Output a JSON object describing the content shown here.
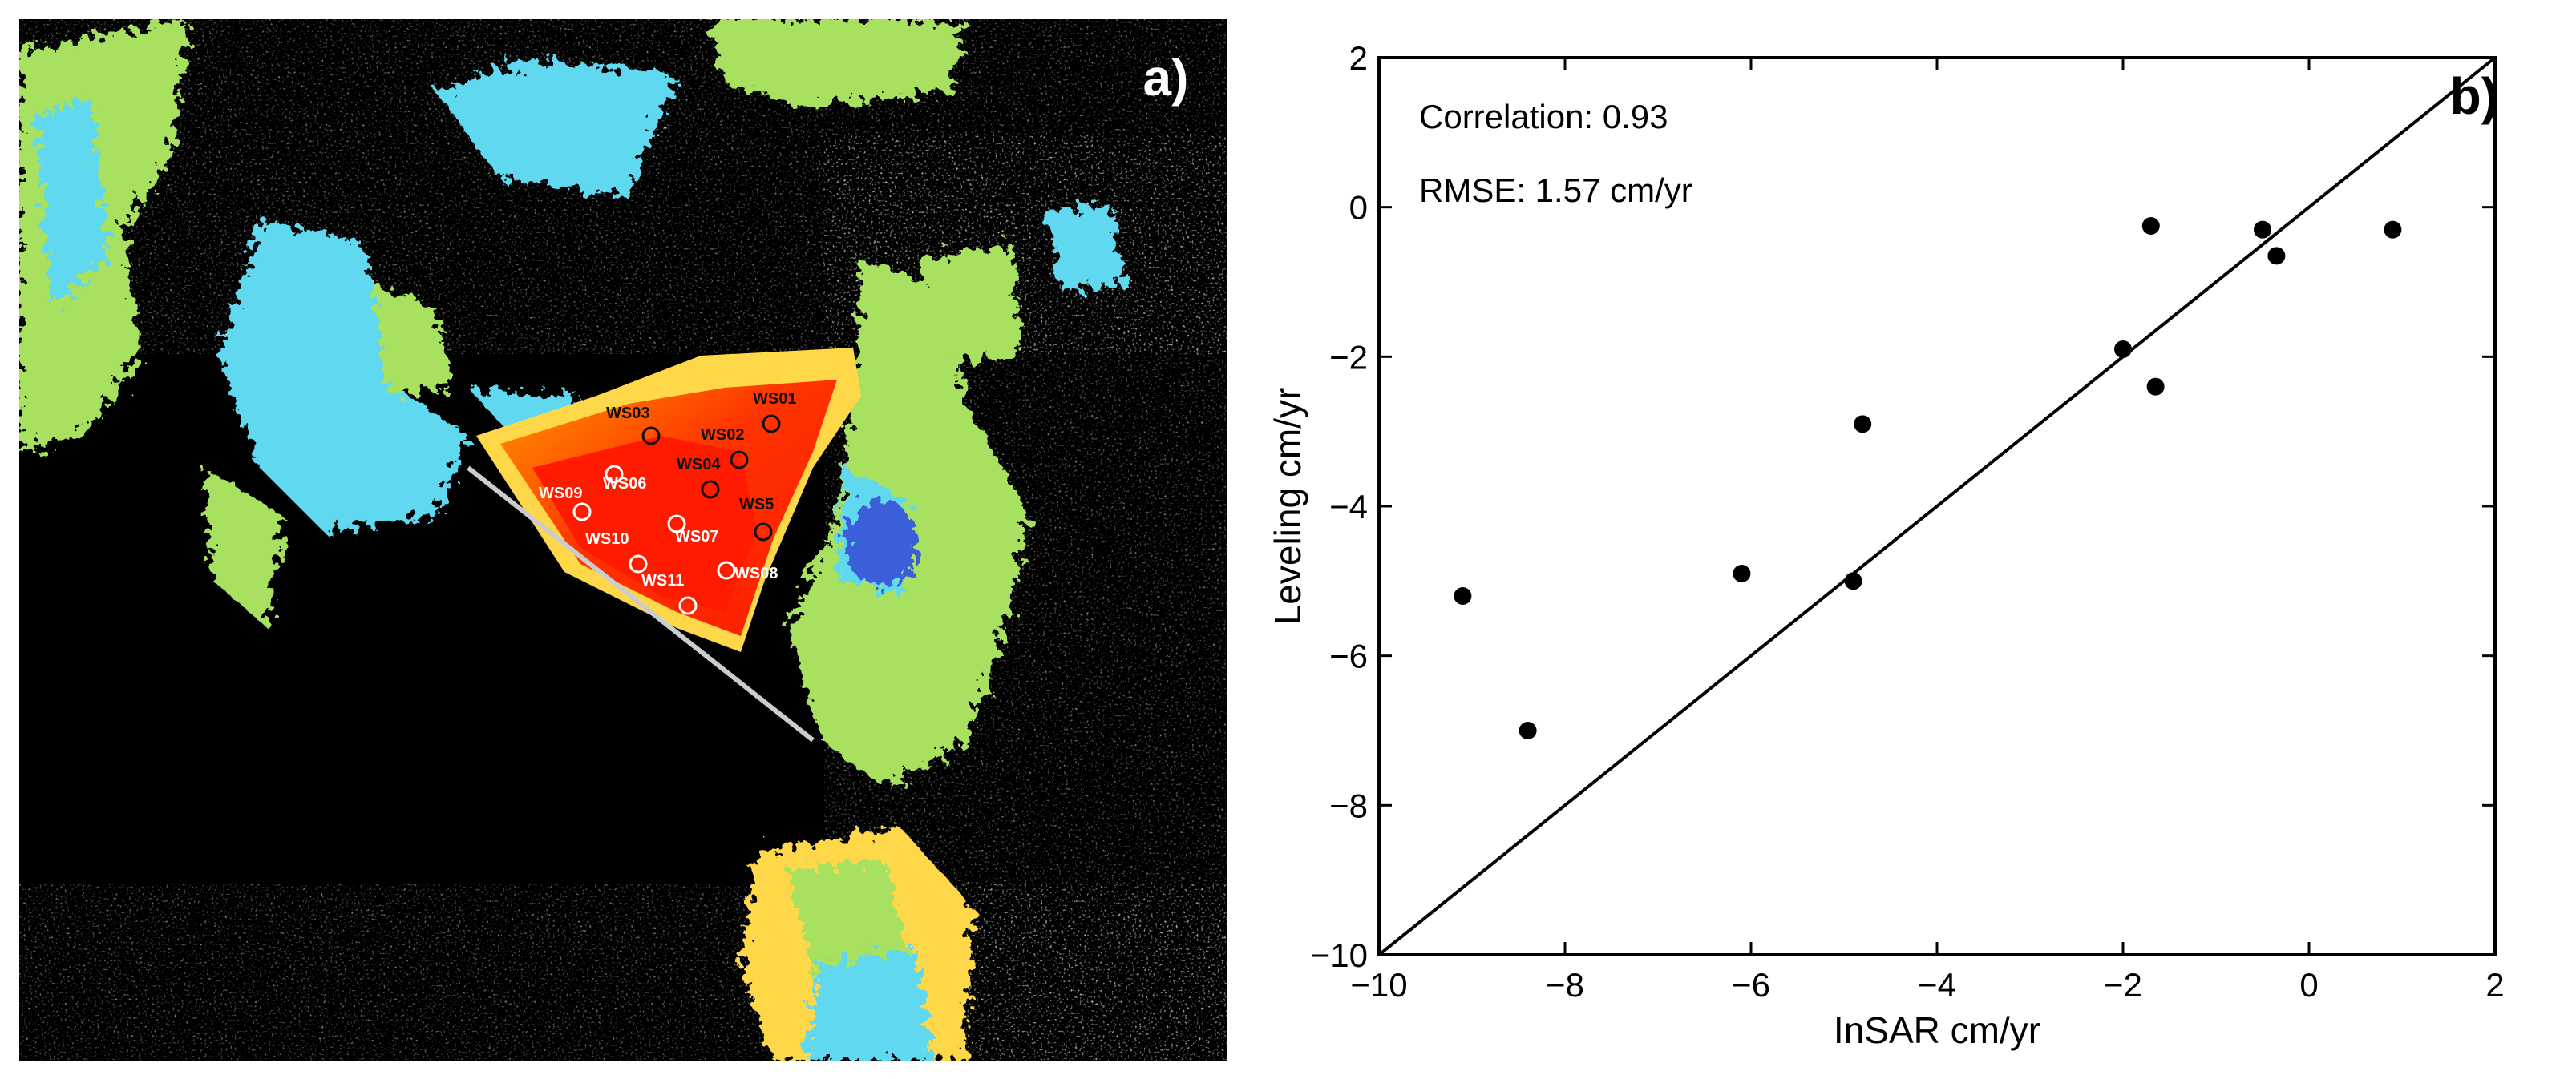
{
  "panel_a": {
    "label": "a)",
    "stations": [
      {
        "id": "WS01",
        "color": "#111111"
      },
      {
        "id": "WS02",
        "color": "#111111"
      },
      {
        "id": "WS03",
        "color": "#111111"
      },
      {
        "id": "WS04",
        "color": "#111111"
      },
      {
        "id": "WS5",
        "color": "#111111"
      },
      {
        "id": "WS06",
        "color": "#ffffff"
      },
      {
        "id": "WS07",
        "color": "#ffffff"
      },
      {
        "id": "WS08",
        "color": "#ffffff"
      },
      {
        "id": "WS09",
        "color": "#ffffff"
      },
      {
        "id": "WS10",
        "color": "#ffffff"
      },
      {
        "id": "WS11",
        "color": "#ffffff"
      }
    ],
    "colors": {
      "background": "#000000",
      "subsidence_max": "#ff1a00",
      "subsidence_mid": "#ff8c00",
      "stable": "#a8e060",
      "uplift_low": "#5fd8f0",
      "uplift_high": "#3a5fd8"
    }
  },
  "chart_data": {
    "type": "scatter",
    "panel_label": "b)",
    "xlabel": "InSAR cm/yr",
    "ylabel": "Leveling cm/yr",
    "xlim": [
      -10,
      2
    ],
    "ylim": [
      -10,
      2
    ],
    "xticks": [
      -10,
      -8,
      -6,
      -4,
      -2,
      0,
      2
    ],
    "yticks": [
      -10,
      -8,
      -6,
      -4,
      -2,
      0,
      2
    ],
    "grid": false,
    "reference_line": {
      "type": "1:1",
      "from": [
        -10,
        -10
      ],
      "to": [
        2,
        2
      ]
    },
    "annotations": [
      "Correlation: 0.93",
      "RMSE: 1.57 cm/yr"
    ],
    "points": [
      {
        "x": -9.1,
        "y": -5.2
      },
      {
        "x": -8.4,
        "y": -7.0
      },
      {
        "x": -6.1,
        "y": -4.9
      },
      {
        "x": -4.9,
        "y": -5.0
      },
      {
        "x": -4.8,
        "y": -2.9
      },
      {
        "x": -2.0,
        "y": -1.9
      },
      {
        "x": -1.7,
        "y": -0.25
      },
      {
        "x": -1.65,
        "y": -2.4
      },
      {
        "x": -0.5,
        "y": -0.3
      },
      {
        "x": -0.35,
        "y": -0.65
      },
      {
        "x": 0.9,
        "y": -0.3
      }
    ],
    "colors": {
      "marker": "#000000",
      "line": "#000000",
      "axes": "#000000"
    }
  }
}
